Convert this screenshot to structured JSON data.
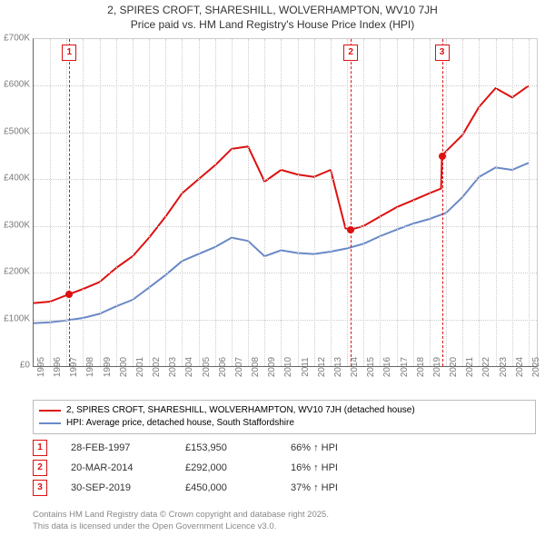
{
  "title": "2, SPIRES CROFT, SHARESHILL, WOLVERHAMPTON, WV10 7JH",
  "subtitle": "Price paid vs. HM Land Registry's House Price Index (HPI)",
  "chart": {
    "type": "line",
    "background_color": "#ffffff",
    "grid_color": "#cccccc",
    "axis_color": "#666666",
    "tick_color": "#7b7b7b",
    "tick_fontsize": 10,
    "ylim": [
      0,
      700000
    ],
    "ytick_step": 100000,
    "ytick_labels": [
      "£0",
      "£100K",
      "£200K",
      "£300K",
      "£400K",
      "£500K",
      "£600K",
      "£700K"
    ],
    "xlim": [
      1995,
      2025.5
    ],
    "xticks": [
      1995,
      1996,
      1997,
      1998,
      1999,
      2000,
      2001,
      2002,
      2003,
      2004,
      2005,
      2006,
      2007,
      2008,
      2009,
      2010,
      2011,
      2012,
      2013,
      2014,
      2015,
      2016,
      2017,
      2018,
      2019,
      2020,
      2021,
      2022,
      2023,
      2024,
      2025
    ],
    "series": [
      {
        "name": "2, SPIRES CROFT, SHARESHILL, WOLVERHAMPTON, WV10 7JH (detached house)",
        "color": "#dd1111",
        "line_width": 2,
        "points": [
          [
            1995,
            135000
          ],
          [
            1996,
            138000
          ],
          [
            1997.16,
            153950
          ],
          [
            1998,
            165000
          ],
          [
            1999,
            180000
          ],
          [
            2000,
            210000
          ],
          [
            2001,
            235000
          ],
          [
            2002,
            275000
          ],
          [
            2003,
            320000
          ],
          [
            2004,
            370000
          ],
          [
            2005,
            400000
          ],
          [
            2006,
            430000
          ],
          [
            2007,
            465000
          ],
          [
            2008,
            470000
          ],
          [
            2009,
            395000
          ],
          [
            2010,
            420000
          ],
          [
            2011,
            410000
          ],
          [
            2012,
            405000
          ],
          [
            2013,
            420000
          ],
          [
            2013.9,
            295000
          ],
          [
            2014.22,
            292000
          ],
          [
            2015,
            300000
          ],
          [
            2016,
            320000
          ],
          [
            2017,
            340000
          ],
          [
            2018,
            355000
          ],
          [
            2019,
            370000
          ],
          [
            2019.7,
            380000
          ],
          [
            2019.75,
            450000
          ],
          [
            2020,
            460000
          ],
          [
            2021,
            495000
          ],
          [
            2022,
            555000
          ],
          [
            2023,
            595000
          ],
          [
            2024,
            575000
          ],
          [
            2025,
            600000
          ]
        ]
      },
      {
        "name": "HPI: Average price, detached house, South Staffordshire",
        "color": "#6a89c7",
        "line_width": 2,
        "points": [
          [
            1995,
            92000
          ],
          [
            1996,
            94000
          ],
          [
            1997,
            98000
          ],
          [
            1998,
            103000
          ],
          [
            1999,
            112000
          ],
          [
            2000,
            128000
          ],
          [
            2001,
            142000
          ],
          [
            2002,
            168000
          ],
          [
            2003,
            195000
          ],
          [
            2004,
            225000
          ],
          [
            2005,
            240000
          ],
          [
            2006,
            255000
          ],
          [
            2007,
            275000
          ],
          [
            2008,
            268000
          ],
          [
            2009,
            235000
          ],
          [
            2010,
            248000
          ],
          [
            2011,
            242000
          ],
          [
            2012,
            240000
          ],
          [
            2013,
            245000
          ],
          [
            2014,
            252000
          ],
          [
            2015,
            262000
          ],
          [
            2016,
            278000
          ],
          [
            2017,
            292000
          ],
          [
            2018,
            305000
          ],
          [
            2019,
            315000
          ],
          [
            2020,
            328000
          ],
          [
            2021,
            362000
          ],
          [
            2022,
            405000
          ],
          [
            2023,
            425000
          ],
          [
            2024,
            420000
          ],
          [
            2025,
            435000
          ]
        ]
      }
    ],
    "markers": [
      {
        "n": "1",
        "x": 1997.16,
        "y": 153950,
        "date": "28-FEB-1997",
        "price": "£153,950",
        "pct": "66% ↑ HPI"
      },
      {
        "n": "2",
        "x": 2014.22,
        "y": 292000,
        "date": "20-MAR-2014",
        "price": "£292,000",
        "pct": "16% ↑ HPI"
      },
      {
        "n": "3",
        "x": 2019.75,
        "y": 450000,
        "date": "30-SEP-2019",
        "price": "£450,000",
        "pct": "37% ↑ HPI"
      }
    ],
    "marker_color": "#dd1111"
  },
  "footer1": "Contains HM Land Registry data © Crown copyright and database right 2025.",
  "footer2": "This data is licensed under the Open Government Licence v3.0."
}
